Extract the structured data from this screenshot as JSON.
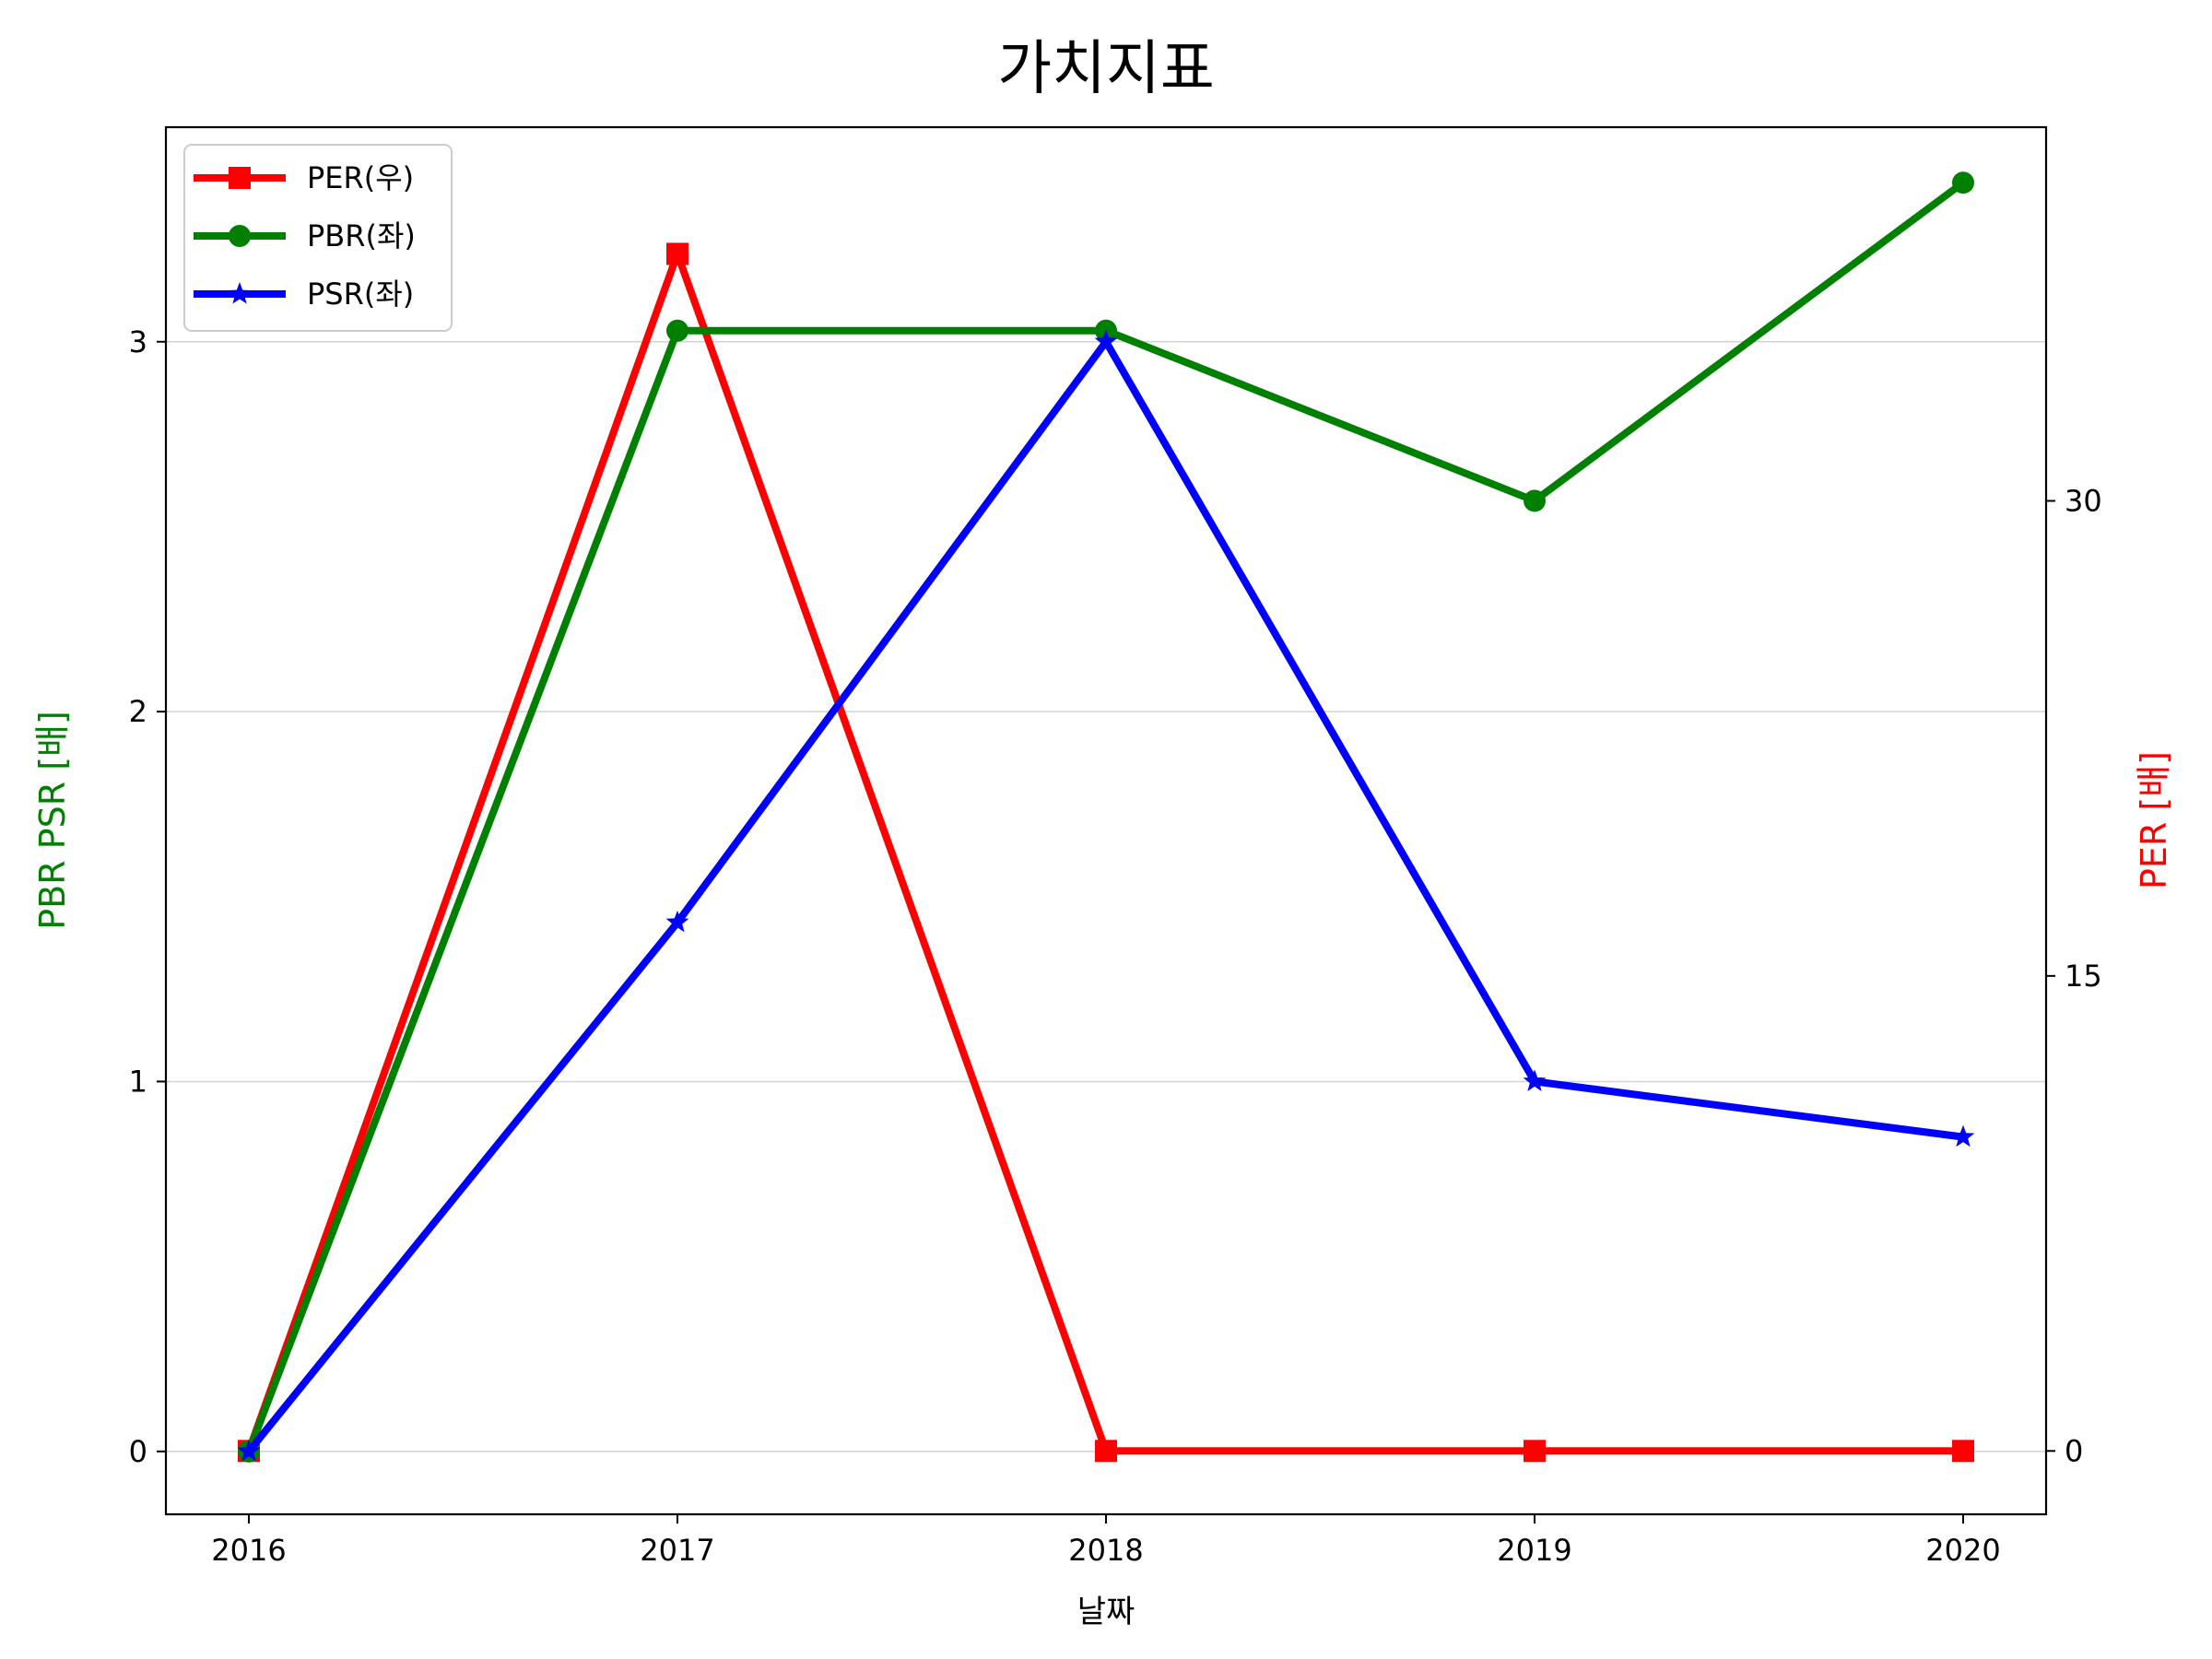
{
  "chart_data": {
    "type": "line",
    "title": "가치지표",
    "xlabel": "날짜",
    "ylabel_left": "PBR PSR [배]",
    "ylabel_right": "PER [배]",
    "categories": [
      "2016",
      "2017",
      "2018",
      "2019",
      "2020"
    ],
    "ylim_left": [
      -0.17,
      3.58
    ],
    "ylim_right": [
      -2.0,
      41.8
    ],
    "yticks_left": [
      0,
      1,
      2,
      3
    ],
    "yticks_right": [
      0,
      15,
      30
    ],
    "grid": "horizontal (left axis)",
    "legend_position": "top-left",
    "series": [
      {
        "name": "PER(우)",
        "axis": "right",
        "color": "#ff0000",
        "marker": "square",
        "values": [
          0,
          37.8,
          0,
          0,
          0
        ]
      },
      {
        "name": "PBR(좌)",
        "axis": "left",
        "color": "#008000",
        "marker": "circle",
        "values": [
          0,
          3.03,
          3.03,
          2.57,
          3.43
        ]
      },
      {
        "name": "PSR(좌)",
        "axis": "left",
        "color": "#0000ff",
        "marker": "star",
        "values": [
          0,
          1.43,
          3.0,
          1.0,
          0.85
        ]
      }
    ],
    "label_colors": {
      "left": "#008000",
      "right": "#ff0000"
    }
  }
}
